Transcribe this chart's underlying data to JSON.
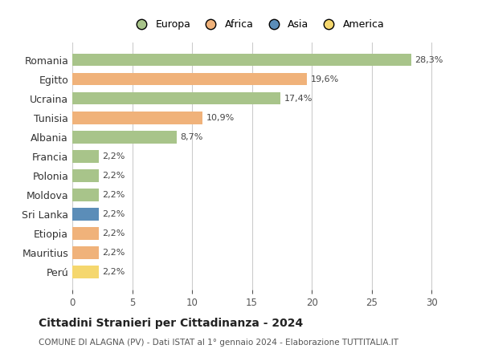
{
  "countries": [
    "Romania",
    "Egitto",
    "Ucraina",
    "Tunisia",
    "Albania",
    "Francia",
    "Polonia",
    "Moldova",
    "Sri Lanka",
    "Etiopia",
    "Mauritius",
    "Perú"
  ],
  "values": [
    28.3,
    19.6,
    17.4,
    10.9,
    8.7,
    2.2,
    2.2,
    2.2,
    2.2,
    2.2,
    2.2,
    2.2
  ],
  "labels": [
    "28,3%",
    "19,6%",
    "17,4%",
    "10,9%",
    "8,7%",
    "2,2%",
    "2,2%",
    "2,2%",
    "2,2%",
    "2,2%",
    "2,2%",
    "2,2%"
  ],
  "colors": [
    "#a8c48a",
    "#f0b27a",
    "#a8c48a",
    "#f0b27a",
    "#a8c48a",
    "#a8c48a",
    "#a8c48a",
    "#a8c48a",
    "#5b8db8",
    "#f0b27a",
    "#f0b27a",
    "#f5d76e"
  ],
  "legend_labels": [
    "Europa",
    "Africa",
    "Asia",
    "America"
  ],
  "legend_colors": [
    "#a8c48a",
    "#f0b27a",
    "#5b8db8",
    "#f5d76e"
  ],
  "xlim": [
    0,
    31
  ],
  "xticks": [
    0,
    5,
    10,
    15,
    20,
    25,
    30
  ],
  "title": "Cittadini Stranieri per Cittadinanza - 2024",
  "subtitle": "COMUNE DI ALAGNA (PV) - Dati ISTAT al 1° gennaio 2024 - Elaborazione TUTTITALIA.IT",
  "bg_color": "#ffffff",
  "bar_height": 0.65,
  "grid_color": "#cccccc"
}
